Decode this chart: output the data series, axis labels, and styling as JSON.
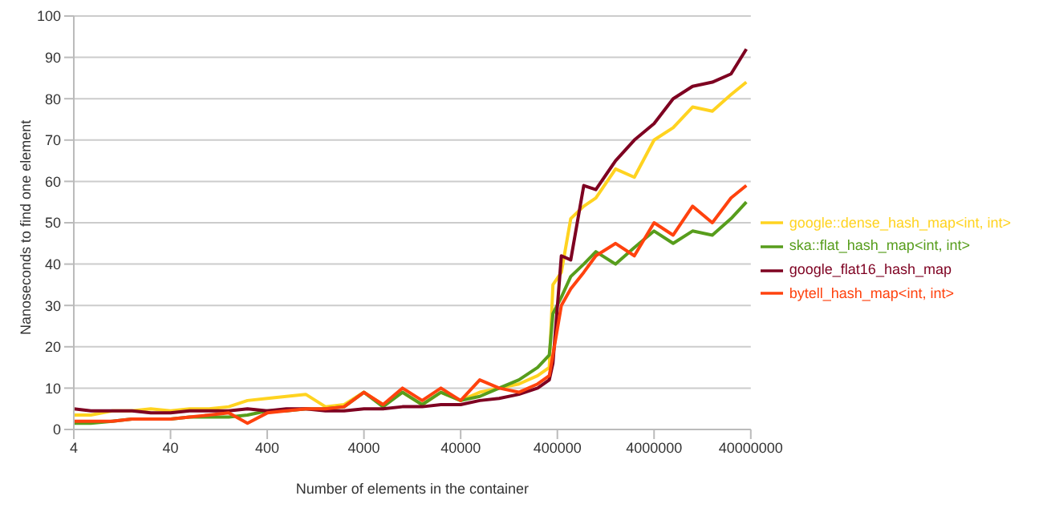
{
  "chart_data": {
    "type": "line",
    "xlabel": "Number of elements in the container",
    "ylabel": "Nanoseconds to find one element",
    "log": "x",
    "grid": "y",
    "legend": "right",
    "marker": "none",
    "line_style": "solid",
    "xlim": [
      4,
      40000000
    ],
    "xticks": [
      4,
      40,
      400,
      4000,
      40000,
      400000,
      4000000,
      40000000
    ],
    "ylim": [
      0,
      100
    ],
    "yticks": [
      0,
      10,
      20,
      30,
      40,
      50,
      60,
      70,
      80,
      90,
      100
    ],
    "x": [
      4,
      6,
      10,
      16,
      25,
      40,
      63,
      100,
      160,
      250,
      400,
      630,
      1000,
      1600,
      2500,
      4000,
      6300,
      10000,
      16000,
      25000,
      40000,
      63000,
      100000,
      160000,
      250000,
      330000,
      360000,
      440000,
      550000,
      750000,
      1000000,
      1600000,
      2500000,
      4000000,
      6300000,
      10000000,
      16000000,
      25000000,
      36000000
    ],
    "series": [
      {
        "name": "google::dense_hash_map<int, int>",
        "color": "#ffd320",
        "values": [
          3.5,
          3.5,
          4.5,
          4.5,
          5,
          4.5,
          5,
          5,
          5.5,
          7,
          7.5,
          8,
          8.5,
          5.5,
          6,
          9,
          6,
          9,
          6,
          9,
          7,
          9,
          10,
          11,
          13,
          15,
          35,
          38,
          51,
          54,
          56,
          63,
          61,
          70,
          73,
          78,
          77,
          81,
          84
        ]
      },
      {
        "name": "ska::flat_hash_map<int, int>",
        "color": "#579d1c",
        "values": [
          1.5,
          1.5,
          2,
          2.5,
          2.5,
          2.5,
          3,
          3,
          3,
          3.5,
          4.5,
          4.5,
          5,
          5,
          5.5,
          9,
          5.5,
          9,
          6,
          9,
          7,
          8,
          10,
          12,
          15,
          18,
          28,
          32,
          37,
          40,
          43,
          40,
          44,
          48,
          45,
          48,
          47,
          51,
          55
        ]
      },
      {
        "name": "google_flat16_hash_map",
        "color": "#7e0021",
        "values": [
          5,
          4.5,
          4.5,
          4.5,
          4,
          4,
          4.5,
          4.5,
          4.5,
          5,
          4.5,
          5,
          5,
          4.5,
          4.5,
          5,
          5,
          5.5,
          5.5,
          6,
          6,
          7,
          7.5,
          8.5,
          10,
          12,
          16,
          42,
          41,
          59,
          58,
          65,
          70,
          74,
          80,
          83,
          84,
          86,
          92
        ]
      },
      {
        "name": "bytell_hash_map<int, int>",
        "color": "#ff420e",
        "values": [
          2,
          2,
          2,
          2.5,
          2.5,
          2.5,
          3,
          3.5,
          4,
          1.5,
          4,
          4.5,
          5,
          5,
          5.5,
          9,
          6,
          10,
          7,
          10,
          7,
          12,
          10,
          9,
          11,
          13,
          18,
          30,
          34,
          38,
          42,
          45,
          42,
          50,
          47,
          54,
          50,
          56,
          59
        ]
      }
    ]
  }
}
